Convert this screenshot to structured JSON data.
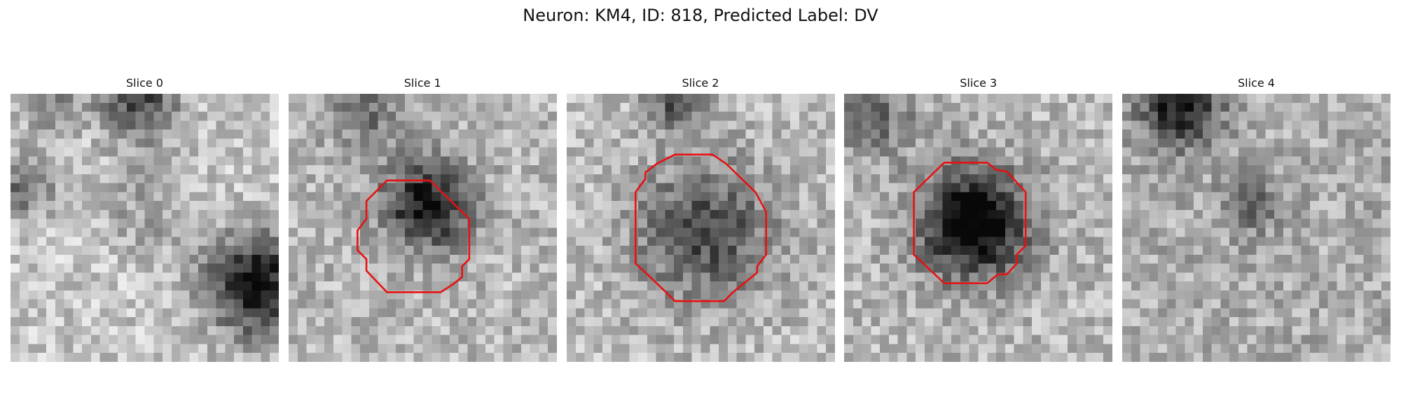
{
  "title": "Neuron: KM4, ID: 818, Predicted Label: DV",
  "panels": [
    {
      "title": "Slice 0"
    },
    {
      "title": "Slice 1"
    },
    {
      "title": "Slice 2"
    },
    {
      "title": "Slice 3"
    },
    {
      "title": "Slice 4"
    }
  ]
}
